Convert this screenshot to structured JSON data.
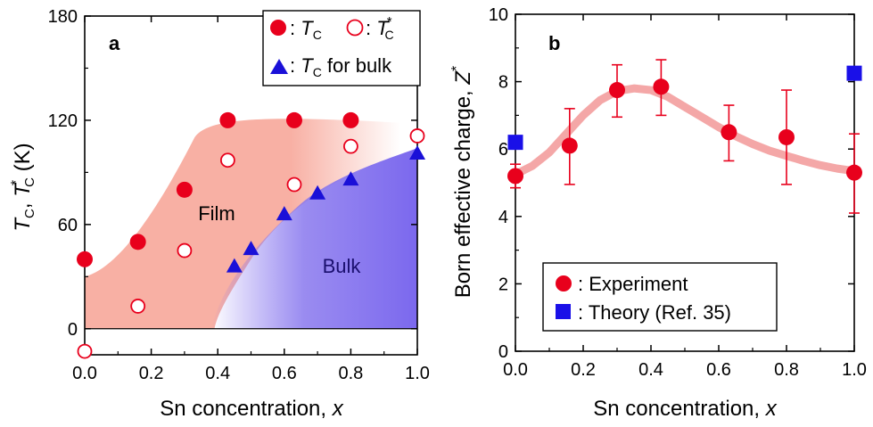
{
  "chart_data": [
    {
      "panel": "a",
      "type": "scatter",
      "xlabel": {
        "main": "Sn concentration, ",
        "var": "x"
      },
      "ylabel": {
        "t1": "T",
        "s1": "C",
        "comma": ",",
        "t2": "T",
        "sup2": "*",
        "s2": "C",
        "unit": "(K)"
      },
      "xlim": [
        0.0,
        1.0
      ],
      "ylim": [
        -15,
        180
      ],
      "xticks": [
        "0.0",
        "0.2",
        "0.4",
        "0.6",
        "0.8",
        "1.0"
      ],
      "yticks": [
        "0",
        "60",
        "120",
        "180"
      ],
      "region_labels": {
        "film": "Film",
        "bulk": "Bulk"
      },
      "colors": {
        "film": "#f8b0a4",
        "bulk": "#7b68ee",
        "marker": "#e8001c",
        "bulk_marker": "#1a10d8"
      },
      "series": [
        {
          "name": "T_C",
          "legend": {
            "prefix": ": ",
            "t": "T",
            "sub": "C"
          },
          "marker": "filled-circle",
          "x": [
            0.0,
            0.16,
            0.3,
            0.43,
            0.63,
            0.8
          ],
          "y": [
            40,
            50,
            80,
            120,
            120,
            120
          ]
        },
        {
          "name": "T_C*",
          "legend": {
            "prefix": ": ",
            "t": "T",
            "sup": "*",
            "sub": "C"
          },
          "marker": "open-circle",
          "x": [
            0.0,
            0.16,
            0.3,
            0.43,
            0.63,
            0.8,
            1.0
          ],
          "y": [
            -13,
            13,
            45,
            97,
            83,
            105,
            111
          ]
        },
        {
          "name": "T_C for bulk",
          "legend": {
            "prefix": ": ",
            "t": "T",
            "sub": "C",
            "suffix": " for bulk"
          },
          "marker": "filled-triangle",
          "x": [
            0.45,
            0.5,
            0.6,
            0.7,
            0.8,
            1.0
          ],
          "y": [
            36,
            46,
            66,
            78,
            86,
            101
          ]
        }
      ]
    },
    {
      "panel": "b",
      "type": "scatter",
      "xlabel": {
        "main": "Sn concentration, ",
        "var": "x"
      },
      "ylabel": {
        "main": "Born effective charge, ",
        "var": "Z",
        "sup": "*"
      },
      "xlim": [
        0.0,
        1.0
      ],
      "ylim": [
        0,
        10
      ],
      "xticks": [
        "0.0",
        "0.2",
        "0.4",
        "0.6",
        "0.8",
        "1.0"
      ],
      "yticks": [
        "0",
        "2",
        "4",
        "6",
        "8",
        "10"
      ],
      "colors": {
        "experiment": "#e8001c",
        "theory": "#1a10e8",
        "fit": "#f08a8a"
      },
      "series": [
        {
          "name": "Experiment",
          "legend": ": Experiment",
          "marker": "filled-circle",
          "x": [
            0.0,
            0.16,
            0.3,
            0.43,
            0.63,
            0.8,
            1.0
          ],
          "y": [
            5.2,
            6.1,
            7.75,
            7.85,
            6.5,
            6.35,
            5.3
          ],
          "err_low": [
            0.35,
            1.15,
            0.8,
            0.85,
            0.85,
            1.4,
            1.2
          ],
          "err_high": [
            0.35,
            1.1,
            0.75,
            0.8,
            0.8,
            1.4,
            1.15
          ]
        },
        {
          "name": "Theory (Ref. 35)",
          "legend": ": Theory (Ref. 35)",
          "marker": "filled-square",
          "x": [
            0.0,
            1.0
          ],
          "y": [
            6.2,
            8.25
          ]
        }
      ],
      "fit_curve": {
        "x": [
          0.0,
          0.05,
          0.1,
          0.15,
          0.2,
          0.25,
          0.3,
          0.35,
          0.4,
          0.45,
          0.5,
          0.55,
          0.6,
          0.65,
          0.7,
          0.75,
          0.8,
          0.85,
          0.9,
          0.95,
          1.0
        ],
        "y": [
          5.25,
          5.5,
          5.9,
          6.45,
          7.0,
          7.45,
          7.72,
          7.8,
          7.75,
          7.55,
          7.25,
          6.95,
          6.65,
          6.38,
          6.15,
          5.95,
          5.8,
          5.65,
          5.52,
          5.42,
          5.35
        ]
      }
    }
  ]
}
